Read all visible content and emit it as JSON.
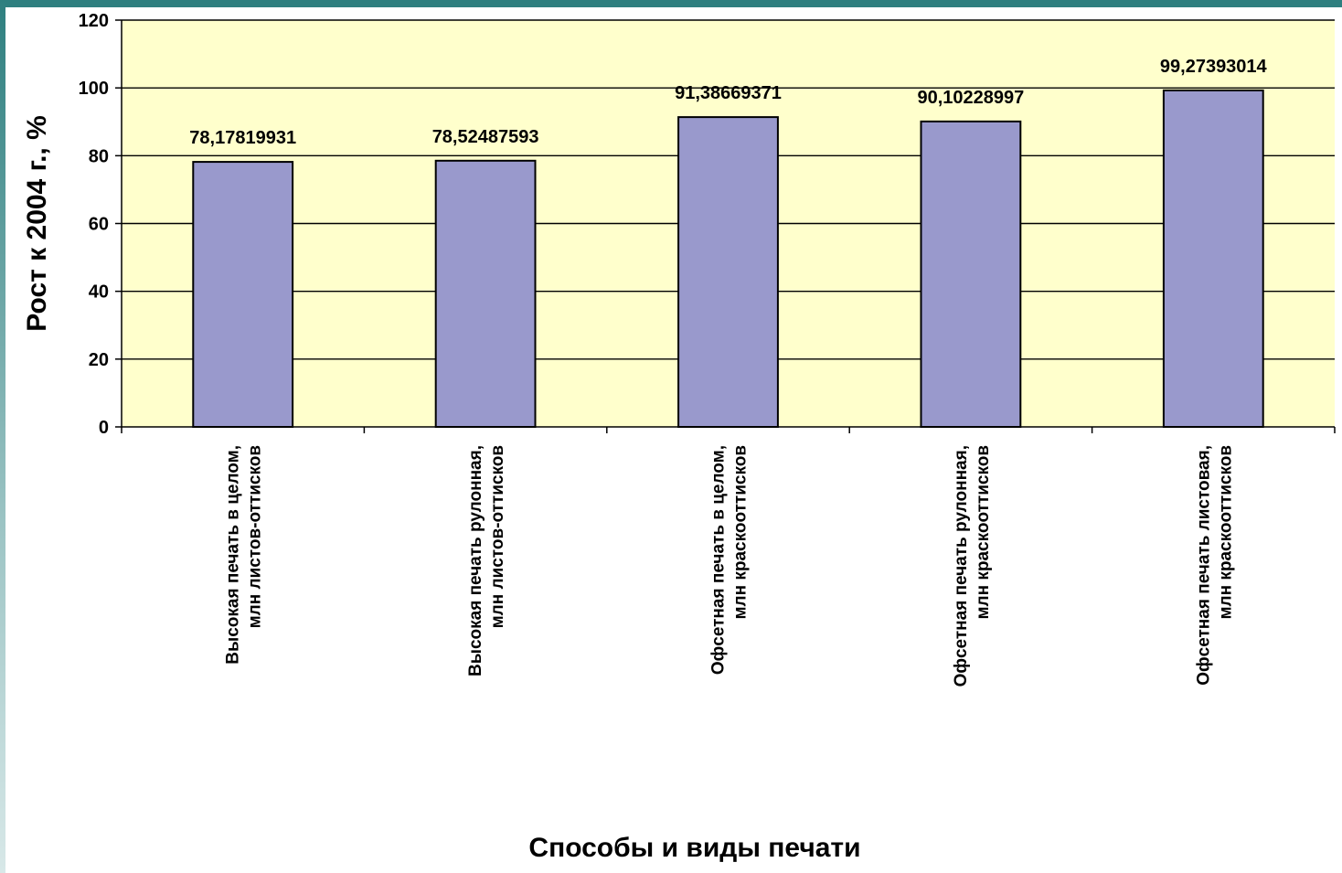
{
  "chart_data": {
    "type": "bar",
    "categories": [
      [
        "Высокая печать в целом,",
        "млн листов-оттисков"
      ],
      [
        "Высокая печать рулонная,",
        "млн листов-оттисков"
      ],
      [
        "Офсетная печать в целом,",
        "млн краскооттисков"
      ],
      [
        "Офсетная печать рулонная,",
        "млн краскооттисков"
      ],
      [
        "Офсетная печать листовая,",
        "млн краскооттисков"
      ]
    ],
    "values": [
      78.17819931,
      78.52487593,
      91.38669371,
      90.10228997,
      99.27393014
    ],
    "data_labels": [
      "78,17819931",
      "78,52487593",
      "91,38669371",
      "90,10228997",
      "99,27393014"
    ],
    "ylabel": "Рост к 2004 г., %",
    "xlabel": "Способы и виды печати",
    "ylim": [
      0,
      120
    ],
    "yticks": [
      "0",
      "20",
      "40",
      "60",
      "80",
      "100",
      "120"
    ],
    "grid": true,
    "colors": {
      "plot_background": "#ffffcc",
      "bar_fill": "#9999cc",
      "bar_stroke": "#000000",
      "gridline": "#000000",
      "frame": "#2e7f7f"
    }
  }
}
